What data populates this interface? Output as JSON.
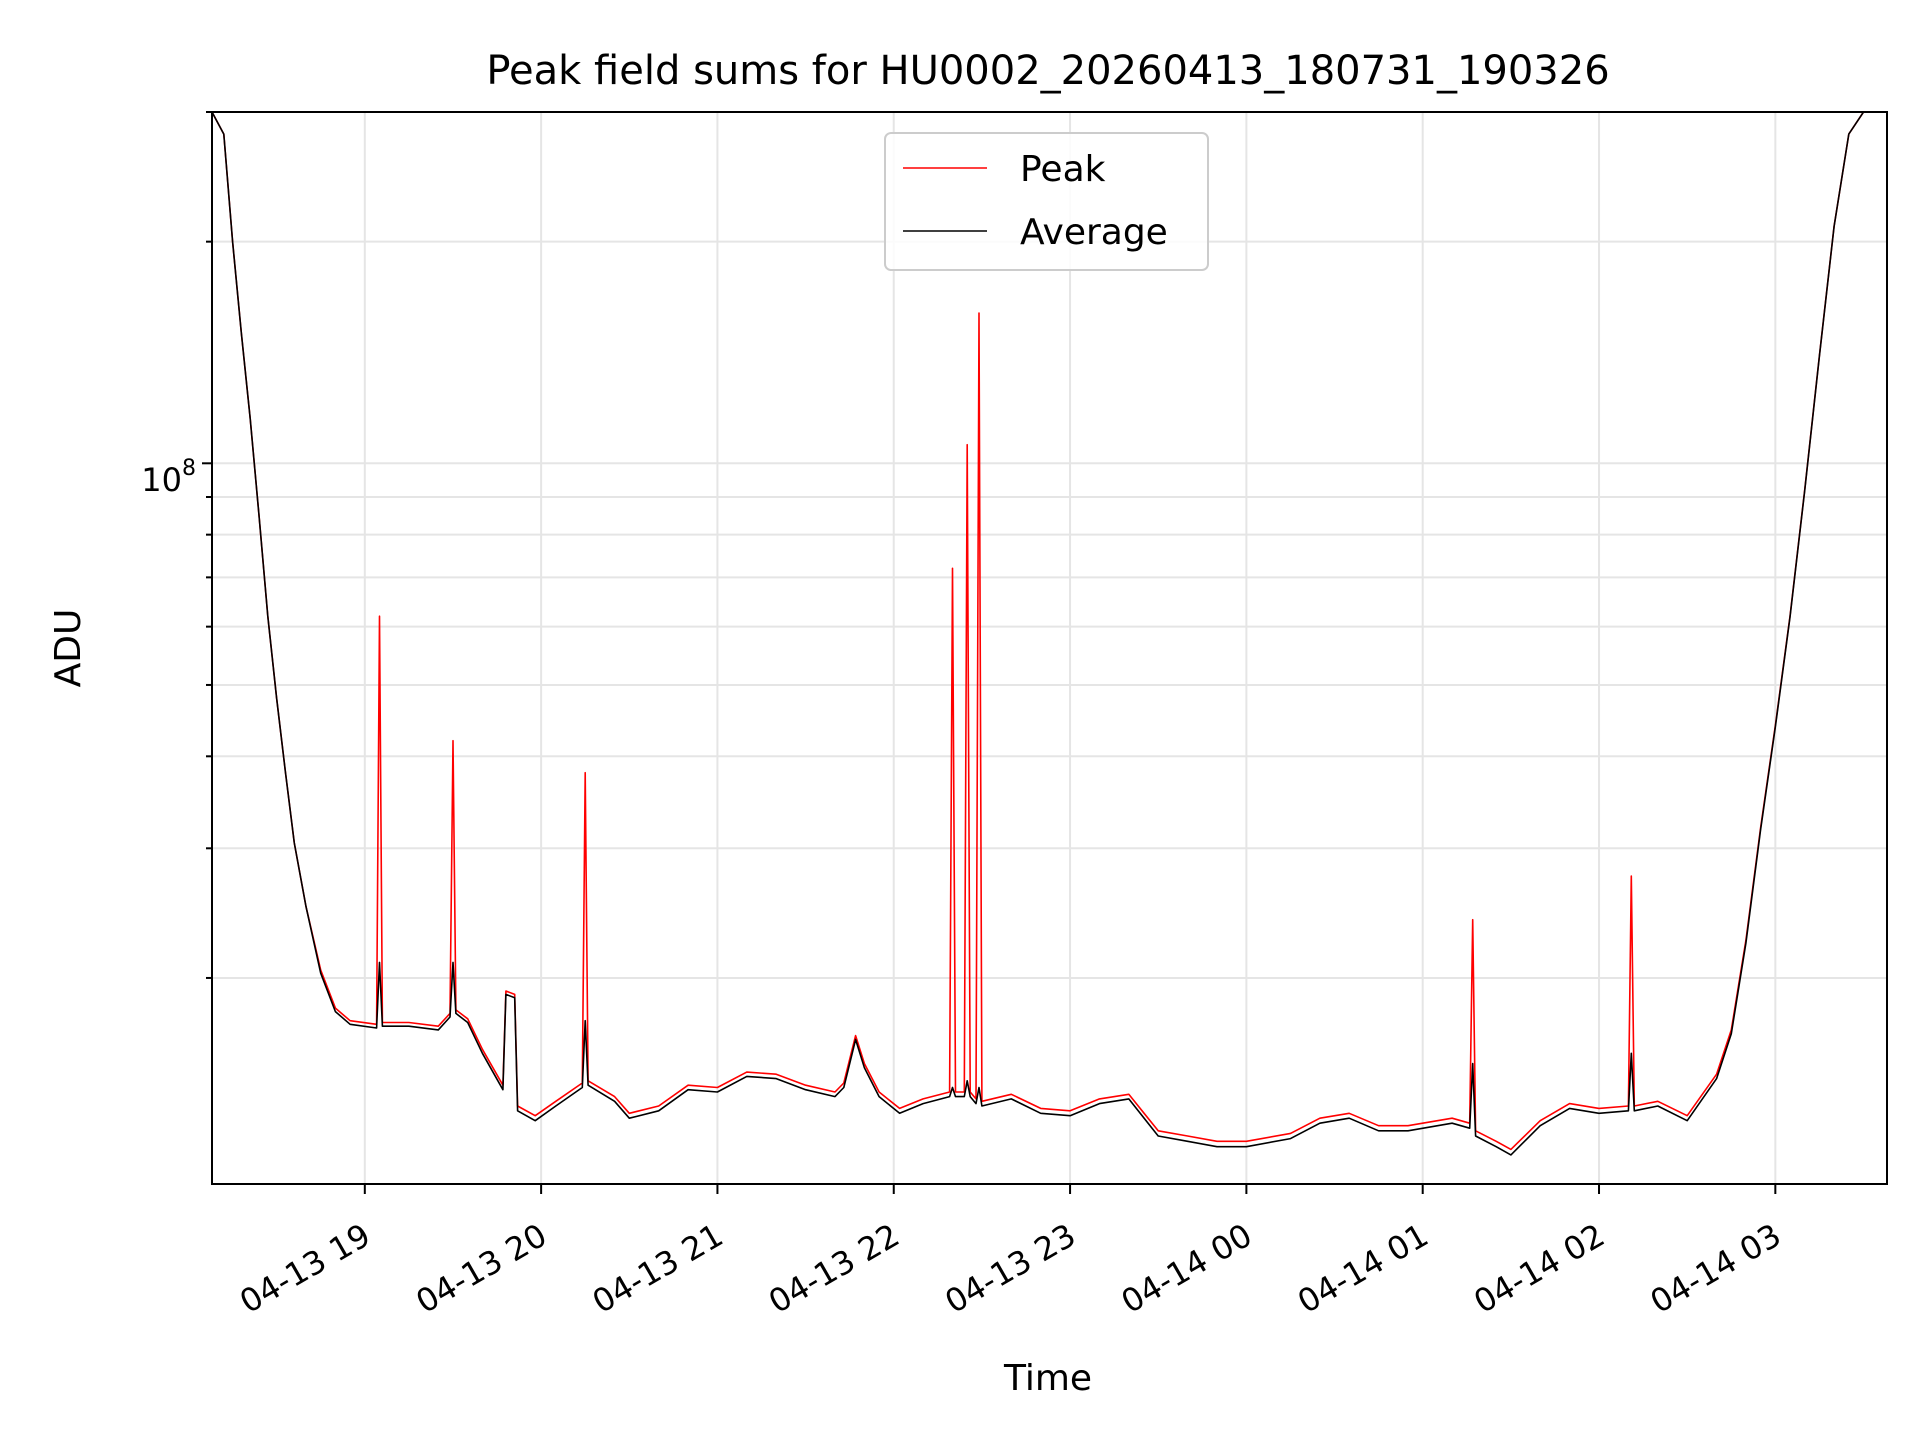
{
  "chart_data": {
    "type": "line",
    "title": "Peak field sums for HU0002_20260413_180731_190326",
    "xlabel": "Time",
    "ylabel": "ADU",
    "yscale": "log",
    "ylim": [
      10500000,
      300000000
    ],
    "xlim": [
      "2026-04-13 18:08",
      "2026-04-14 03:38"
    ],
    "grid": true,
    "legend_position": "top-center",
    "y_tick_label": {
      "base": "10",
      "exponent": "8",
      "value": 100000000
    },
    "x_ticks": [
      {
        "t": "2026-04-13 19:00",
        "label": "04-13 19"
      },
      {
        "t": "2026-04-13 20:00",
        "label": "04-13 20"
      },
      {
        "t": "2026-04-13 21:00",
        "label": "04-13 21"
      },
      {
        "t": "2026-04-13 22:00",
        "label": "04-13 22"
      },
      {
        "t": "2026-04-13 23:00",
        "label": "04-13 23"
      },
      {
        "t": "2026-04-14 00:00",
        "label": "04-14 00"
      },
      {
        "t": "2026-04-14 01:00",
        "label": "04-14 01"
      },
      {
        "t": "2026-04-14 02:00",
        "label": "04-14 02"
      },
      {
        "t": "2026-04-14 03:00",
        "label": "04-14 03"
      }
    ],
    "series": [
      {
        "name": "Peak",
        "color": "#ff0000",
        "points": [
          [
            "2026-04-13 18:08",
            300000000
          ],
          [
            "2026-04-13 18:12",
            280000000
          ],
          [
            "2026-04-13 18:15",
            200000000
          ],
          [
            "2026-04-13 18:18",
            150000000
          ],
          [
            "2026-04-13 18:21",
            115000000
          ],
          [
            "2026-04-13 18:24",
            85000000
          ],
          [
            "2026-04-13 18:27",
            62000000
          ],
          [
            "2026-04-13 18:30",
            48000000
          ],
          [
            "2026-04-13 18:33",
            38000000
          ],
          [
            "2026-04-13 18:36",
            30500000
          ],
          [
            "2026-04-13 18:40",
            25000000
          ],
          [
            "2026-04-13 18:45",
            20500000
          ],
          [
            "2026-04-13 18:50",
            18200000
          ],
          [
            "2026-04-13 18:55",
            17500000
          ],
          [
            "2026-04-13 19:04",
            17300000
          ],
          [
            "2026-04-13 19:05",
            62000000
          ],
          [
            "2026-04-13 19:06",
            17400000
          ],
          [
            "2026-04-13 19:15",
            17400000
          ],
          [
            "2026-04-13 19:25",
            17200000
          ],
          [
            "2026-04-13 19:29",
            17900000
          ],
          [
            "2026-04-13 19:30",
            42000000
          ],
          [
            "2026-04-13 19:31",
            18100000
          ],
          [
            "2026-04-13 19:35",
            17600000
          ],
          [
            "2026-04-13 19:40",
            16000000
          ],
          [
            "2026-04-13 19:47",
            14300000
          ],
          [
            "2026-04-13 19:48",
            19200000
          ],
          [
            "2026-04-13 19:51",
            19000000
          ],
          [
            "2026-04-13 19:52",
            13400000
          ],
          [
            "2026-04-13 19:58",
            13000000
          ],
          [
            "2026-04-13 20:05",
            13600000
          ],
          [
            "2026-04-13 20:14",
            14400000
          ],
          [
            "2026-04-13 20:15",
            38000000
          ],
          [
            "2026-04-13 20:16",
            14500000
          ],
          [
            "2026-04-13 20:25",
            13800000
          ],
          [
            "2026-04-13 20:30",
            13100000
          ],
          [
            "2026-04-13 20:40",
            13400000
          ],
          [
            "2026-04-13 20:50",
            14300000
          ],
          [
            "2026-04-13 21:00",
            14200000
          ],
          [
            "2026-04-13 21:10",
            14900000
          ],
          [
            "2026-04-13 21:20",
            14800000
          ],
          [
            "2026-04-13 21:30",
            14300000
          ],
          [
            "2026-04-13 21:40",
            14000000
          ],
          [
            "2026-04-13 21:43",
            14400000
          ],
          [
            "2026-04-13 21:47",
            16700000
          ],
          [
            "2026-04-13 21:50",
            15300000
          ],
          [
            "2026-04-13 21:55",
            14000000
          ],
          [
            "2026-04-13 22:02",
            13300000
          ],
          [
            "2026-04-13 22:10",
            13700000
          ],
          [
            "2026-04-13 22:19",
            14000000
          ],
          [
            "2026-04-13 22:20",
            72000000
          ],
          [
            "2026-04-13 22:21",
            14000000
          ],
          [
            "2026-04-13 22:24",
            14000000
          ],
          [
            "2026-04-13 22:25",
            106000000
          ],
          [
            "2026-04-13 22:26",
            14000000
          ],
          [
            "2026-04-13 22:28",
            13700000
          ],
          [
            "2026-04-13 22:29",
            160000000
          ],
          [
            "2026-04-13 22:30",
            13600000
          ],
          [
            "2026-04-13 22:40",
            13900000
          ],
          [
            "2026-04-13 22:50",
            13300000
          ],
          [
            "2026-04-13 23:00",
            13200000
          ],
          [
            "2026-04-13 23:10",
            13700000
          ],
          [
            "2026-04-13 23:20",
            13900000
          ],
          [
            "2026-04-13 23:30",
            12400000
          ],
          [
            "2026-04-13 23:40",
            12200000
          ],
          [
            "2026-04-13 23:50",
            12000000
          ],
          [
            "2026-04-14 00:00",
            12000000
          ],
          [
            "2026-04-14 00:15",
            12300000
          ],
          [
            "2026-04-14 00:25",
            12900000
          ],
          [
            "2026-04-14 00:35",
            13100000
          ],
          [
            "2026-04-14 00:45",
            12600000
          ],
          [
            "2026-04-14 00:55",
            12600000
          ],
          [
            "2026-04-14 01:10",
            12900000
          ],
          [
            "2026-04-14 01:16",
            12700000
          ],
          [
            "2026-04-14 01:17",
            24000000
          ],
          [
            "2026-04-14 01:18",
            12400000
          ],
          [
            "2026-04-14 01:25",
            12000000
          ],
          [
            "2026-04-14 01:30",
            11700000
          ],
          [
            "2026-04-14 01:40",
            12800000
          ],
          [
            "2026-04-14 01:50",
            13500000
          ],
          [
            "2026-04-14 02:00",
            13300000
          ],
          [
            "2026-04-14 02:10",
            13400000
          ],
          [
            "2026-04-14 02:11",
            27500000
          ],
          [
            "2026-04-14 02:12",
            13400000
          ],
          [
            "2026-04-14 02:20",
            13600000
          ],
          [
            "2026-04-14 02:30",
            13000000
          ],
          [
            "2026-04-14 02:40",
            14800000
          ],
          [
            "2026-04-14 02:45",
            17000000
          ],
          [
            "2026-04-14 02:50",
            22500000
          ],
          [
            "2026-04-14 02:55",
            32000000
          ],
          [
            "2026-04-14 03:00",
            44000000
          ],
          [
            "2026-04-14 03:05",
            62000000
          ],
          [
            "2026-04-14 03:10",
            92000000
          ],
          [
            "2026-04-14 03:15",
            140000000
          ],
          [
            "2026-04-14 03:20",
            210000000
          ],
          [
            "2026-04-14 03:25",
            280000000
          ],
          [
            "2026-04-14 03:30",
            300000000
          ],
          [
            "2026-04-14 03:38",
            300000000
          ]
        ]
      },
      {
        "name": "Average",
        "color": "#000000",
        "points": [
          [
            "2026-04-13 18:08",
            300000000
          ],
          [
            "2026-04-13 18:12",
            280000000
          ],
          [
            "2026-04-13 18:15",
            200000000
          ],
          [
            "2026-04-13 18:18",
            150000000
          ],
          [
            "2026-04-13 18:21",
            115000000
          ],
          [
            "2026-04-13 18:24",
            85000000
          ],
          [
            "2026-04-13 18:27",
            62000000
          ],
          [
            "2026-04-13 18:30",
            48000000
          ],
          [
            "2026-04-13 18:33",
            38000000
          ],
          [
            "2026-04-13 18:36",
            30500000
          ],
          [
            "2026-04-13 18:40",
            25000000
          ],
          [
            "2026-04-13 18:45",
            20300000
          ],
          [
            "2026-04-13 18:50",
            18000000
          ],
          [
            "2026-04-13 18:55",
            17300000
          ],
          [
            "2026-04-13 19:04",
            17100000
          ],
          [
            "2026-04-13 19:05",
            21000000
          ],
          [
            "2026-04-13 19:06",
            17200000
          ],
          [
            "2026-04-13 19:15",
            17200000
          ],
          [
            "2026-04-13 19:25",
            17000000
          ],
          [
            "2026-04-13 19:29",
            17700000
          ],
          [
            "2026-04-13 19:30",
            21000000
          ],
          [
            "2026-04-13 19:31",
            17900000
          ],
          [
            "2026-04-13 19:35",
            17400000
          ],
          [
            "2026-04-13 19:40",
            15800000
          ],
          [
            "2026-04-13 19:47",
            14100000
          ],
          [
            "2026-04-13 19:48",
            19000000
          ],
          [
            "2026-04-13 19:51",
            18800000
          ],
          [
            "2026-04-13 19:52",
            13200000
          ],
          [
            "2026-04-13 19:58",
            12800000
          ],
          [
            "2026-04-13 20:05",
            13400000
          ],
          [
            "2026-04-13 20:14",
            14200000
          ],
          [
            "2026-04-13 20:15",
            17500000
          ],
          [
            "2026-04-13 20:16",
            14300000
          ],
          [
            "2026-04-13 20:25",
            13600000
          ],
          [
            "2026-04-13 20:30",
            12900000
          ],
          [
            "2026-04-13 20:40",
            13200000
          ],
          [
            "2026-04-13 20:50",
            14100000
          ],
          [
            "2026-04-13 21:00",
            14000000
          ],
          [
            "2026-04-13 21:10",
            14700000
          ],
          [
            "2026-04-13 21:20",
            14600000
          ],
          [
            "2026-04-13 21:30",
            14100000
          ],
          [
            "2026-04-13 21:40",
            13800000
          ],
          [
            "2026-04-13 21:43",
            14200000
          ],
          [
            "2026-04-13 21:47",
            16500000
          ],
          [
            "2026-04-13 21:50",
            15100000
          ],
          [
            "2026-04-13 21:55",
            13800000
          ],
          [
            "2026-04-13 22:02",
            13100000
          ],
          [
            "2026-04-13 22:10",
            13500000
          ],
          [
            "2026-04-13 22:19",
            13800000
          ],
          [
            "2026-04-13 22:20",
            14200000
          ],
          [
            "2026-04-13 22:21",
            13800000
          ],
          [
            "2026-04-13 22:24",
            13800000
          ],
          [
            "2026-04-13 22:25",
            14500000
          ],
          [
            "2026-04-13 22:26",
            13800000
          ],
          [
            "2026-04-13 22:28",
            13500000
          ],
          [
            "2026-04-13 22:29",
            14200000
          ],
          [
            "2026-04-13 22:30",
            13400000
          ],
          [
            "2026-04-13 22:40",
            13700000
          ],
          [
            "2026-04-13 22:50",
            13100000
          ],
          [
            "2026-04-13 23:00",
            13000000
          ],
          [
            "2026-04-13 23:10",
            13500000
          ],
          [
            "2026-04-13 23:20",
            13700000
          ],
          [
            "2026-04-13 23:30",
            12200000
          ],
          [
            "2026-04-13 23:40",
            12000000
          ],
          [
            "2026-04-13 23:50",
            11800000
          ],
          [
            "2026-04-14 00:00",
            11800000
          ],
          [
            "2026-04-14 00:15",
            12100000
          ],
          [
            "2026-04-14 00:25",
            12700000
          ],
          [
            "2026-04-14 00:35",
            12900000
          ],
          [
            "2026-04-14 00:45",
            12400000
          ],
          [
            "2026-04-14 00:55",
            12400000
          ],
          [
            "2026-04-14 01:10",
            12700000
          ],
          [
            "2026-04-14 01:16",
            12500000
          ],
          [
            "2026-04-14 01:17",
            15300000
          ],
          [
            "2026-04-14 01:18",
            12200000
          ],
          [
            "2026-04-14 01:25",
            11800000
          ],
          [
            "2026-04-14 01:30",
            11500000
          ],
          [
            "2026-04-14 01:40",
            12600000
          ],
          [
            "2026-04-14 01:50",
            13300000
          ],
          [
            "2026-04-14 02:00",
            13100000
          ],
          [
            "2026-04-14 02:10",
            13200000
          ],
          [
            "2026-04-14 02:11",
            15800000
          ],
          [
            "2026-04-14 02:12",
            13200000
          ],
          [
            "2026-04-14 02:20",
            13400000
          ],
          [
            "2026-04-14 02:30",
            12800000
          ],
          [
            "2026-04-14 02:40",
            14600000
          ],
          [
            "2026-04-14 02:45",
            16800000
          ],
          [
            "2026-04-14 02:50",
            22300000
          ],
          [
            "2026-04-14 02:55",
            31800000
          ],
          [
            "2026-04-14 03:00",
            43800000
          ],
          [
            "2026-04-14 03:05",
            61800000
          ],
          [
            "2026-04-14 03:10",
            91800000
          ],
          [
            "2026-04-14 03:15",
            139800000
          ],
          [
            "2026-04-14 03:20",
            209800000
          ],
          [
            "2026-04-14 03:25",
            280000000
          ],
          [
            "2026-04-14 03:30",
            300000000
          ],
          [
            "2026-04-14 03:38",
            300000000
          ]
        ]
      }
    ]
  }
}
